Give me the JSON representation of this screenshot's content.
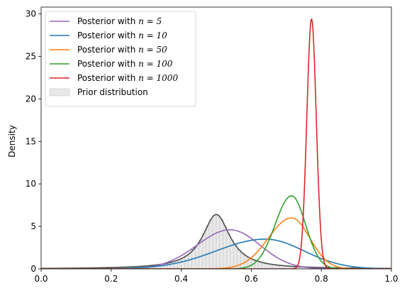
{
  "chart_data": {
    "type": "line",
    "title": "",
    "xlabel": "",
    "ylabel": "Density",
    "xlim": [
      0,
      1
    ],
    "ylim": [
      0,
      30.8
    ],
    "xticks": [
      0.0,
      0.2,
      0.4,
      0.6,
      0.8,
      1.0
    ],
    "xtick_labels": [
      "0.0",
      "0.2",
      "0.4",
      "0.6",
      "0.8",
      "1.0"
    ],
    "yticks": [
      0,
      5,
      10,
      15,
      20,
      25,
      30
    ],
    "ytick_labels": [
      "0",
      "5",
      "10",
      "15",
      "20",
      "25",
      "30"
    ],
    "grid": false,
    "legend_position": "top-left",
    "series": [
      {
        "name": "Posterior with n = 5",
        "legend_prefix": "Posterior with ",
        "legend_math": "n = 5",
        "color": "#9467bd",
        "peak_x": 0.54,
        "peak_y": 4.6
      },
      {
        "name": "Posterior with n = 10",
        "legend_prefix": "Posterior with ",
        "legend_math": "n = 10",
        "color": "#1f77b4",
        "peak_x": 0.64,
        "peak_y": 3.5
      },
      {
        "name": "Posterior with n = 50",
        "legend_prefix": "Posterior with ",
        "legend_math": "n = 50",
        "color": "#ff7f0e",
        "peak_x": 0.715,
        "peak_y": 6.0
      },
      {
        "name": "Posterior with n = 100",
        "legend_prefix": "Posterior with ",
        "legend_math": "n = 100",
        "color": "#2ca02c",
        "peak_x": 0.715,
        "peak_y": 8.6
      },
      {
        "name": "Posterior with n = 1000",
        "legend_prefix": "Posterior with ",
        "legend_math": "n = 1000",
        "color": "#d62728",
        "peak_x": 0.772,
        "peak_y": 29.4
      }
    ],
    "prior": {
      "name": "Prior distribution",
      "fill_color": "#e8e8e8",
      "edge_color": "#c8c8c8",
      "line_color": "#4d4d4d",
      "peak_x": 0.5,
      "peak_y": 6.4
    }
  }
}
